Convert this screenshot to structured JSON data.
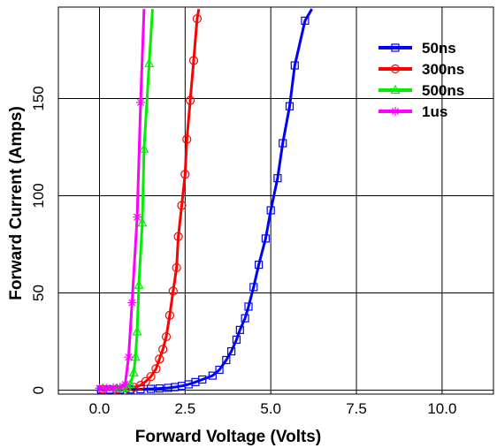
{
  "chart_data": {
    "type": "line",
    "title": "",
    "xlabel": "Forward Voltage (Volts)",
    "ylabel": "Forward Current (Amps)",
    "xlim": [
      -1.2,
      11.5
    ],
    "ylim": [
      -2,
      197
    ],
    "xticks": [
      0,
      2.5,
      5,
      7.5,
      10
    ],
    "xtick_labels": [
      "0.0",
      "2.5",
      "5.0",
      "7.5",
      "10.0"
    ],
    "yticks": [
      0,
      50,
      100,
      150
    ],
    "ytick_labels": [
      "0",
      "50",
      "100",
      "150"
    ],
    "grid": true,
    "legend_position": "top-right",
    "series": [
      {
        "name": "50ns",
        "color": "#0000ff",
        "marker": "square",
        "points": [
          [
            0.05,
            0.3
          ],
          [
            0.3,
            0.3
          ],
          [
            0.6,
            0.3
          ],
          [
            0.9,
            0.4
          ],
          [
            1.2,
            0.5
          ],
          [
            1.5,
            0.7
          ],
          [
            1.75,
            0.9
          ],
          [
            2.0,
            1.2
          ],
          [
            2.2,
            1.6
          ],
          [
            2.4,
            2.2
          ],
          [
            2.6,
            3.0
          ],
          [
            2.8,
            4.2
          ],
          [
            3.0,
            5.5
          ],
          [
            3.3,
            7.5
          ],
          [
            3.5,
            10.5
          ],
          [
            3.7,
            15.5
          ],
          [
            3.85,
            20.0
          ],
          [
            4.0,
            26.0
          ],
          [
            4.1,
            31.0
          ],
          [
            4.25,
            37.0
          ],
          [
            4.35,
            43.0
          ],
          [
            4.5,
            53.0
          ],
          [
            4.65,
            64.5
          ],
          [
            4.85,
            78.0
          ],
          [
            5.0,
            92.5
          ],
          [
            5.2,
            109.0
          ],
          [
            5.35,
            127.0
          ],
          [
            5.55,
            146.0
          ],
          [
            5.7,
            167.0
          ],
          [
            6.0,
            190.0
          ],
          [
            6.2,
            196.0
          ]
        ]
      },
      {
        "name": "300ns",
        "color": "#ff0000",
        "marker": "circle",
        "points": [
          [
            0.1,
            0.5
          ],
          [
            0.5,
            0.5
          ],
          [
            0.8,
            1.0
          ],
          [
            1.0,
            1.5
          ],
          [
            1.2,
            2.5
          ],
          [
            1.35,
            4.5
          ],
          [
            1.5,
            7.0
          ],
          [
            1.65,
            11.0
          ],
          [
            1.75,
            16.0
          ],
          [
            1.85,
            21.0
          ],
          [
            1.95,
            27.5
          ],
          [
            2.05,
            38.5
          ],
          [
            2.15,
            51.0
          ],
          [
            2.25,
            63.0
          ],
          [
            2.3,
            79.0
          ],
          [
            2.4,
            95.0
          ],
          [
            2.5,
            111.0
          ],
          [
            2.55,
            129.0
          ],
          [
            2.65,
            149.0
          ],
          [
            2.75,
            169.5
          ],
          [
            2.85,
            191.0
          ],
          [
            2.9,
            196.0
          ]
        ]
      },
      {
        "name": "500ns",
        "color": "#00ee00",
        "marker": "triangle",
        "points": [
          [
            0.1,
            0.8
          ],
          [
            0.5,
            0.8
          ],
          [
            0.7,
            1.0
          ],
          [
            0.8,
            1.5
          ],
          [
            0.9,
            3.0
          ],
          [
            1.0,
            9.0
          ],
          [
            1.05,
            17.0
          ],
          [
            1.1,
            30.0
          ],
          [
            1.15,
            54.0
          ],
          [
            1.25,
            86.0
          ],
          [
            1.3,
            124.0
          ],
          [
            1.45,
            168.0
          ],
          [
            1.55,
            196.0
          ]
        ]
      },
      {
        "name": "1us",
        "color": "#ff00ff",
        "marker": "star",
        "points": [
          [
            0.0,
            1.0
          ],
          [
            0.2,
            1.0
          ],
          [
            0.4,
            1.2
          ],
          [
            0.6,
            1.5
          ],
          [
            0.75,
            3.0
          ],
          [
            0.85,
            17.0
          ],
          [
            0.95,
            45.0
          ],
          [
            1.1,
            89.0
          ],
          [
            1.2,
            148.0
          ],
          [
            1.3,
            196.0
          ]
        ]
      }
    ]
  }
}
